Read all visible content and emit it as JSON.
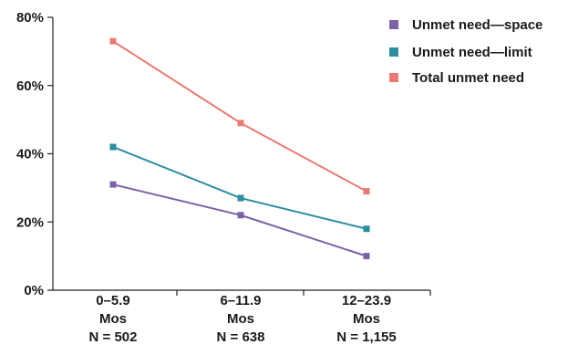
{
  "chart_data": {
    "type": "line",
    "title": "",
    "xlabel": "",
    "ylabel": "",
    "categories": [
      [
        "0–5.9",
        "Mos",
        "N = 502"
      ],
      [
        "6–11.9",
        "Mos",
        "N = 638"
      ],
      [
        "12–23.9",
        "Mos",
        "N = 1,155"
      ]
    ],
    "y_ticks": [
      "0%",
      "20%",
      "40%",
      "60%",
      "80%"
    ],
    "ylim": [
      0,
      80
    ],
    "grid": false,
    "legend_position": "top-right",
    "series": [
      {
        "name": "Unmet need—space",
        "color": "#7b62a7",
        "values": [
          31,
          22,
          10
        ]
      },
      {
        "name": "Unmet need—limit",
        "color": "#2a8e9e",
        "values": [
          42,
          27,
          18
        ]
      },
      {
        "name": "Total unmet need",
        "color": "#ec7a72",
        "values": [
          73,
          49,
          29
        ]
      }
    ]
  }
}
